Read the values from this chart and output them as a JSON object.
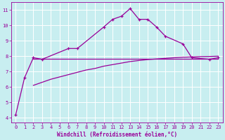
{
  "xlabel": "Windchill (Refroidissement éolien,°C)",
  "background_color": "#c8eef0",
  "grid_color": "#ffffff",
  "line_color": "#990099",
  "ylim": [
    3.7,
    11.5
  ],
  "xlim": [
    -0.5,
    23.5
  ],
  "yticks": [
    4,
    5,
    6,
    7,
    8,
    9,
    10,
    11
  ],
  "xticks": [
    0,
    1,
    2,
    3,
    4,
    5,
    6,
    7,
    8,
    9,
    10,
    11,
    12,
    13,
    14,
    15,
    16,
    17,
    18,
    19,
    20,
    21,
    22,
    23
  ],
  "line1_x": [
    0,
    1,
    2,
    3,
    6,
    7,
    10,
    11,
    12,
    13,
    14,
    15,
    16,
    17,
    19,
    20,
    22,
    23
  ],
  "line1_y": [
    4.2,
    6.6,
    7.9,
    7.8,
    8.5,
    8.5,
    9.9,
    10.4,
    10.6,
    11.1,
    10.4,
    10.4,
    9.9,
    9.3,
    8.8,
    7.9,
    7.8,
    7.9
  ],
  "line2_x": [
    2,
    3,
    4,
    5,
    6,
    7,
    8,
    9,
    10,
    11,
    12,
    13,
    14,
    15,
    16,
    17,
    18,
    19,
    20,
    21,
    22,
    23
  ],
  "line2_y": [
    6.1,
    6.3,
    6.5,
    6.65,
    6.8,
    6.95,
    7.1,
    7.2,
    7.35,
    7.45,
    7.55,
    7.65,
    7.72,
    7.78,
    7.82,
    7.86,
    7.9,
    7.93,
    7.95,
    7.97,
    7.98,
    8.0
  ],
  "line3_x": [
    2,
    3,
    4,
    5,
    6,
    7,
    8,
    9,
    10,
    11,
    12,
    13,
    14,
    15,
    16,
    17,
    18,
    19,
    20,
    21,
    22,
    23
  ],
  "line3_y": [
    7.85,
    7.85,
    7.85,
    7.85,
    7.85,
    7.85,
    7.85,
    7.85,
    7.85,
    7.85,
    7.85,
    7.85,
    7.85,
    7.85,
    7.85,
    7.85,
    7.85,
    7.85,
    7.85,
    7.85,
    7.85,
    7.85
  ],
  "xlabel_fontsize": 5.5,
  "tick_fontsize": 5,
  "linewidth": 0.9,
  "markersize": 3.5,
  "markeredgewidth": 0.9
}
